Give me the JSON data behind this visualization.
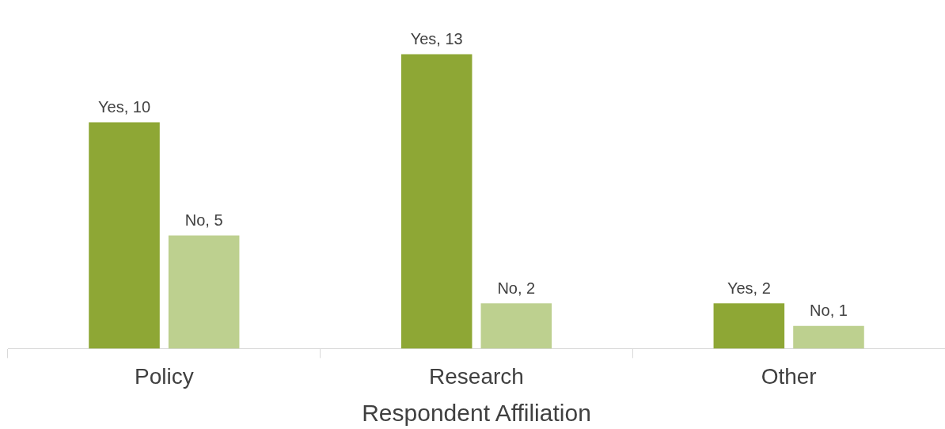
{
  "chart_data": {
    "type": "bar",
    "xlabel": "Respondent Affiliation",
    "categories": [
      "Policy",
      "Research",
      "Other"
    ],
    "series": [
      {
        "color": "#8ea735",
        "values": [
          10,
          13,
          2
        ],
        "value_labels": [
          "Yes, 10",
          "Yes, 13",
          "Yes, 2"
        ]
      },
      {
        "color": "#bdd08f",
        "values": [
          5,
          2,
          1
        ],
        "value_labels": [
          "No, 5",
          "No, 2",
          "No, 1"
        ]
      }
    ],
    "legend": false
  }
}
